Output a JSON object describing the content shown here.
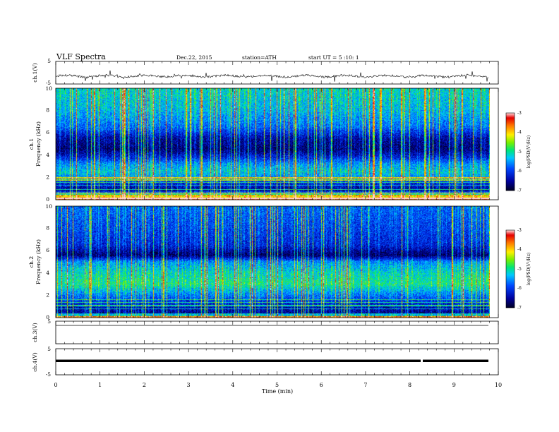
{
  "header": {
    "title": "VLF  Spectra",
    "date": "Dec.22, 2015",
    "station": "station=ATH",
    "start": "start  UT  =   5  :10: 1"
  },
  "chart_data": [
    {
      "type": "line",
      "panel": "ch1-waveform",
      "ylabel": "ch.1(V)",
      "ylim": [
        -5,
        5
      ],
      "yticks": [
        "5",
        "-5"
      ],
      "xlim": [
        0,
        10
      ],
      "baseline": -1.5,
      "series": [
        {
          "values": [
            -1.5
          ]
        }
      ]
    },
    {
      "type": "heatmap",
      "panel": "ch1-spectrogram",
      "ylabel_top": "ch.1",
      "ylabel": "Frequency  (kHz)",
      "ylim": [
        0,
        10
      ],
      "yticks": [
        "0",
        "2",
        "4",
        "6",
        "8",
        "10"
      ],
      "xlim": [
        0,
        9.8
      ],
      "colorbar": {
        "label": "log(PSD(V²/Hz)",
        "range": [
          -7,
          -3
        ],
        "ticks": [
          "-3",
          "-4",
          "-5",
          "-6",
          "-7"
        ]
      },
      "band_profile_khz": [
        [
          0,
          -3.6
        ],
        [
          0.3,
          -4.2
        ],
        [
          0.8,
          -6.6
        ],
        [
          1.5,
          -6.2
        ],
        [
          2.0,
          -5.6
        ],
        [
          2.5,
          -5.3
        ],
        [
          3.2,
          -5.6
        ],
        [
          3.8,
          -6.2
        ],
        [
          4.5,
          -6.7
        ],
        [
          5.5,
          -6.5
        ],
        [
          6.5,
          -5.8
        ],
        [
          8.0,
          -5.4
        ],
        [
          10.0,
          -5.2
        ]
      ]
    },
    {
      "type": "heatmap",
      "panel": "ch2-spectrogram",
      "ylabel_top": "ch.2",
      "ylabel": "Frequency  (kHz)",
      "ylim": [
        0,
        10
      ],
      "yticks": [
        "0",
        "2",
        "4",
        "6",
        "8",
        "10"
      ],
      "xlim": [
        0,
        9.8
      ],
      "colorbar": {
        "label": "log(PSD(V²/Hz)",
        "range": [
          -7,
          -3
        ],
        "ticks": [
          "-3",
          "-4",
          "-5",
          "-6",
          "-7"
        ]
      },
      "band_profile_khz": [
        [
          0,
          -3.8
        ],
        [
          0.3,
          -6.6
        ],
        [
          1.0,
          -6.4
        ],
        [
          2.0,
          -5.7
        ],
        [
          3.0,
          -5.0
        ],
        [
          4.0,
          -5.2
        ],
        [
          5.0,
          -5.6
        ],
        [
          5.6,
          -6.8
        ],
        [
          6.5,
          -6.2
        ],
        [
          8.0,
          -6.0
        ],
        [
          10.0,
          -5.8
        ]
      ]
    },
    {
      "type": "line",
      "panel": "ch3-waveform",
      "ylabel": "ch.3(V)",
      "ylim": [
        -5,
        5
      ],
      "yticks": [
        "5"
      ],
      "xlim": [
        0,
        10
      ],
      "baseline": 0
    },
    {
      "type": "line",
      "panel": "ch4-waveform",
      "ylabel": "ch.4(V)",
      "ylim": [
        -5,
        5
      ],
      "yticks": [
        "5",
        "-5"
      ],
      "xlim": [
        0,
        10
      ],
      "xlabel": "Time  (min)",
      "xticks": [
        "0",
        "1",
        "2",
        "3",
        "4",
        "5",
        "6",
        "7",
        "8",
        "9",
        "10"
      ],
      "baseline": 0
    }
  ],
  "colors": {
    "axis": "#000000",
    "trace": "#000000"
  }
}
